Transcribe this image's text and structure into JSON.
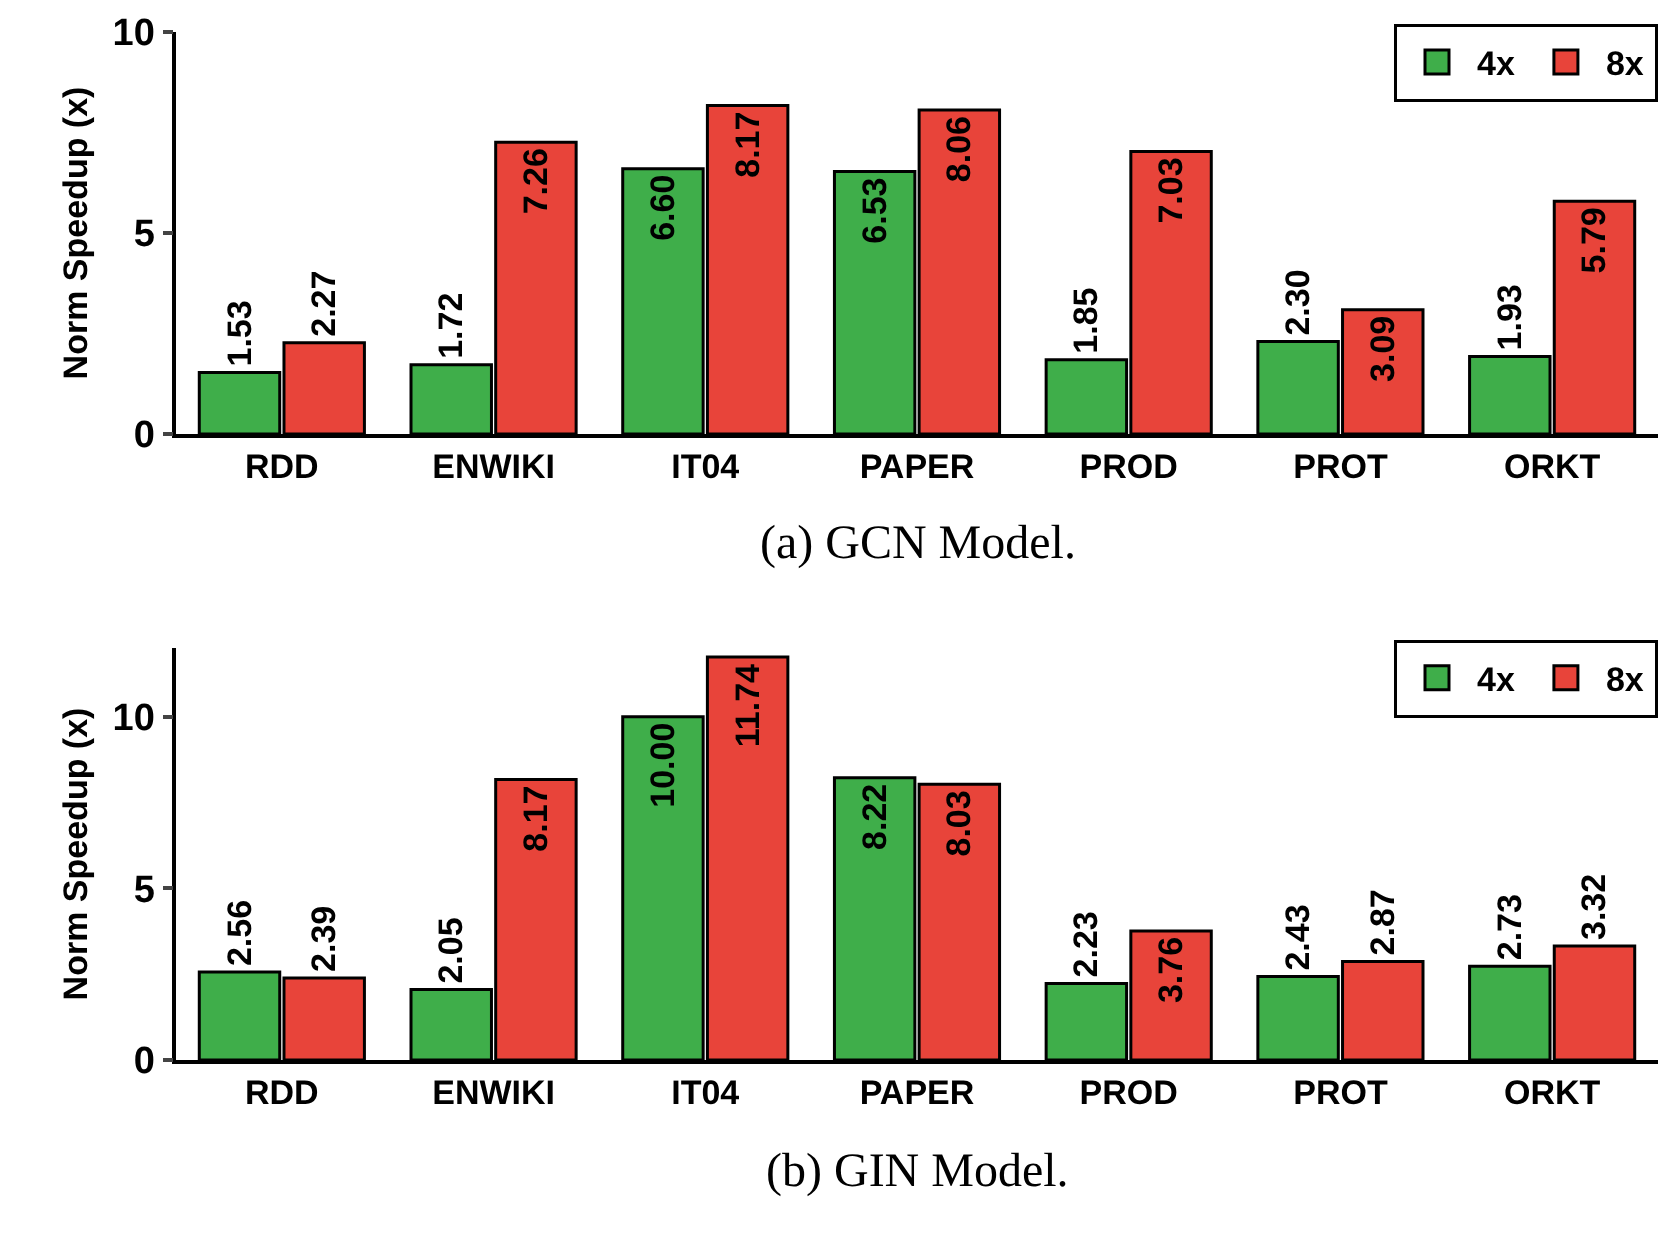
{
  "chart_data": [
    {
      "type": "bar",
      "categories": [
        "RDD",
        "ENWIKI",
        "IT04",
        "PAPER",
        "PROD",
        "PROT",
        "ORKT"
      ],
      "ylabel": "Norm Speedup (x)",
      "ylim": [
        0,
        10
      ],
      "yticks": [
        0,
        5,
        10
      ],
      "grid": false,
      "legend": "top right",
      "annotations": [
        "(a) GCN Model."
      ],
      "series": [
        {
          "name": "4x",
          "color": "#3fae4a",
          "values": [
            1.53,
            1.72,
            6.6,
            6.53,
            1.85,
            2.3,
            1.93
          ],
          "value_labels": [
            "1.53",
            "1.72",
            "6.60",
            "6.53",
            "1.85",
            "2.30",
            "1.93"
          ]
        },
        {
          "name": "8x",
          "color": "#e8443a",
          "values": [
            2.27,
            7.26,
            8.17,
            8.06,
            7.03,
            3.09,
            5.79
          ],
          "value_labels": [
            "2.27",
            "7.26",
            "8.17",
            "8.06",
            "7.03",
            "3.09",
            "5.79"
          ]
        }
      ]
    },
    {
      "type": "bar",
      "categories": [
        "RDD",
        "ENWIKI",
        "IT04",
        "PAPER",
        "PROD",
        "PROT",
        "ORKT"
      ],
      "ylabel": "Norm Speedup (x)",
      "ylim": [
        0,
        12
      ],
      "yticks": [
        0,
        5,
        10
      ],
      "grid": false,
      "legend": "top right",
      "annotations": [
        "(b) GIN Model."
      ],
      "series": [
        {
          "name": "4x",
          "color": "#3fae4a",
          "values": [
            2.56,
            2.05,
            10.0,
            8.22,
            2.23,
            2.43,
            2.73
          ],
          "value_labels": [
            "2.56",
            "2.05",
            "10.00",
            "8.22",
            "2.23",
            "2.43",
            "2.73"
          ]
        },
        {
          "name": "8x",
          "color": "#e8443a",
          "values": [
            2.39,
            8.17,
            11.74,
            8.03,
            3.76,
            2.87,
            3.32
          ],
          "value_labels": [
            "2.39",
            "8.17",
            "11.74",
            "8.03",
            "3.76",
            "2.87",
            "3.32"
          ]
        }
      ]
    }
  ]
}
